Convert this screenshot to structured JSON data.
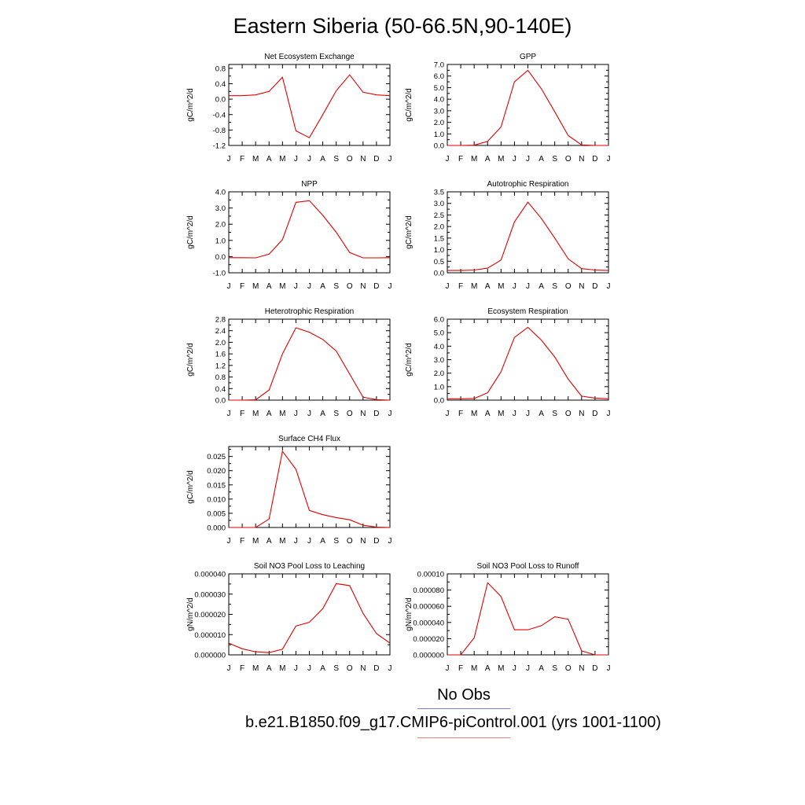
{
  "title": "Eastern Siberia (50-66.5N,90-140E)",
  "line_color": "#e00000",
  "month_labels": [
    "J",
    "F",
    "M",
    "A",
    "M",
    "J",
    "J",
    "A",
    "S",
    "O",
    "N",
    "D",
    "J"
  ],
  "legend": {
    "obs_label": "No Obs",
    "obs_color": "#7777ee",
    "model_label": "b.e21.B1850.f09_g17.CMIP6-piControl.001 (yrs 1001-1100)",
    "model_color": "#f08080"
  },
  "chart_data": [
    {
      "type": "line",
      "title": "Net Ecosystem Exchange",
      "ylabel": "gC/m^2/d",
      "ylim": [
        -1.2,
        0.9
      ],
      "yticks": [
        "0.8",
        "0.4",
        "0.0",
        "-0.4",
        "-0.8",
        "-1.2"
      ],
      "values": [
        0.09,
        0.09,
        0.11,
        0.2,
        0.57,
        -0.82,
        -1.0,
        -0.4,
        0.22,
        0.63,
        0.18,
        0.11,
        0.09
      ]
    },
    {
      "type": "line",
      "title": "GPP",
      "ylabel": "gC/m^2/d",
      "ylim": [
        0,
        7.0
      ],
      "yticks": [
        "7.0",
        "6.0",
        "5.0",
        "4.0",
        "3.0",
        "2.0",
        "1.0",
        "0.0"
      ],
      "values": [
        0.0,
        0.0,
        0.02,
        0.35,
        1.6,
        5.5,
        6.5,
        4.9,
        2.9,
        0.85,
        0.05,
        0.0,
        0.0
      ]
    },
    {
      "type": "line",
      "title": "NPP",
      "ylabel": "gC/m^2/d",
      "ylim": [
        -1.0,
        4.0
      ],
      "yticks": [
        "4.0",
        "3.0",
        "2.0",
        "1.0",
        "0.0",
        "-1.0"
      ],
      "values": [
        -0.07,
        -0.07,
        -0.08,
        0.15,
        1.05,
        3.35,
        3.45,
        2.55,
        1.5,
        0.25,
        -0.08,
        -0.08,
        -0.07
      ]
    },
    {
      "type": "line",
      "title": "Autotrophic Respiration",
      "ylabel": "gC/m^2/d",
      "ylim": [
        0,
        3.5
      ],
      "yticks": [
        "3.5",
        "3.0",
        "2.5",
        "2.0",
        "1.5",
        "1.0",
        "0.5",
        "0.0"
      ],
      "values": [
        0.1,
        0.1,
        0.12,
        0.2,
        0.55,
        2.2,
        3.05,
        2.35,
        1.5,
        0.6,
        0.18,
        0.12,
        0.1
      ]
    },
    {
      "type": "line",
      "title": "Heterotrophic Respiration",
      "ylabel": "gC/m^2/d",
      "ylim": [
        0,
        2.8
      ],
      "yticks": [
        "2.8",
        "2.4",
        "2.0",
        "1.6",
        "1.2",
        "0.8",
        "0.4",
        "0.0"
      ],
      "values": [
        0.0,
        0.0,
        0.01,
        0.35,
        1.6,
        2.5,
        2.35,
        2.1,
        1.7,
        0.9,
        0.1,
        0.02,
        0.0
      ]
    },
    {
      "type": "line",
      "title": "Ecosystem Respiration",
      "ylabel": "gC/m^2/d",
      "ylim": [
        0,
        6.0
      ],
      "yticks": [
        "6.0",
        "5.0",
        "4.0",
        "3.0",
        "2.0",
        "1.0",
        "0.0"
      ],
      "values": [
        0.1,
        0.1,
        0.12,
        0.55,
        2.1,
        4.65,
        5.4,
        4.45,
        3.2,
        1.55,
        0.3,
        0.15,
        0.1
      ]
    },
    {
      "type": "line",
      "title": "Surface CH4 Flux",
      "ylabel": "gC/m^2/d",
      "ylim": [
        0,
        0.0285
      ],
      "yticks": [
        "0.025",
        "0.020",
        "0.015",
        "0.010",
        "0.005",
        "0.000"
      ],
      "values": [
        0.0,
        0.0,
        0.0,
        0.003,
        0.0268,
        0.0205,
        0.006,
        0.0045,
        0.0035,
        0.0027,
        0.0008,
        0.0001,
        0.0
      ]
    },
    {
      "type": "line",
      "title": "Soil NO3 Pool Loss to Leaching",
      "ylabel": "gN/m^2/d",
      "ylim": [
        0,
        4e-05
      ],
      "yticks": [
        "0.000040",
        "0.000030",
        "0.000020",
        "0.000010",
        "0.000000"
      ],
      "values": [
        5.8e-06,
        3e-06,
        1.5e-06,
        1.1e-06,
        2.8e-06,
        1.42e-05,
        1.61e-05,
        2.28e-05,
        3.52e-05,
        3.42e-05,
        2.05e-05,
        1.05e-05,
        5.8e-06
      ]
    },
    {
      "type": "line",
      "title": "Soil NO3 Pool Loss to Runoff",
      "ylabel": "gN/m^2/d",
      "ylim": [
        0,
        0.0001
      ],
      "yticks": [
        "0.00010",
        "0.000080",
        "0.000060",
        "0.000040",
        "0.000020",
        "0.000000"
      ],
      "values": [
        0.0,
        0.0,
        2.1e-05,
        8.9e-05,
        7.2e-05,
        3.1e-05,
        3.1e-05,
        3.6e-05,
        4.7e-05,
        4.4e-05,
        5e-06,
        0.0,
        0.0
      ]
    }
  ]
}
